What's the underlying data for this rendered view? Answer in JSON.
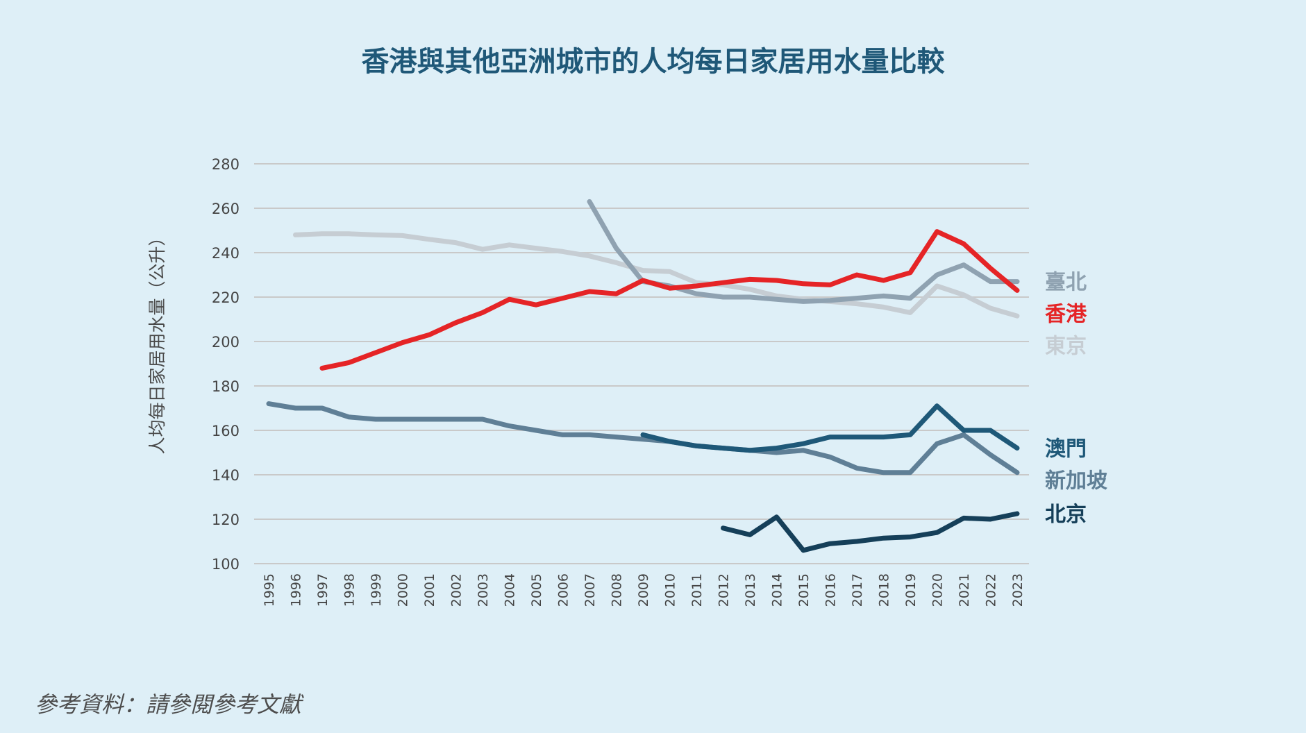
{
  "chart_data": {
    "type": "line",
    "title": "香港與其他亞洲城市的人均每日家居用水量比較",
    "ylabel": "人均每日家居用水量（公升）",
    "ylim": [
      100,
      280
    ],
    "yticks": [
      100,
      120,
      140,
      160,
      180,
      200,
      220,
      240,
      260,
      280
    ],
    "x": [
      "1995",
      "1996",
      "1997",
      "1998",
      "1999",
      "2000",
      "2001",
      "2002",
      "2003",
      "2004",
      "2005",
      "2006",
      "2007",
      "2008",
      "2009",
      "2010",
      "2011",
      "2012",
      "2013",
      "2014",
      "2015",
      "2016",
      "2017",
      "2018",
      "2019",
      "2020",
      "2021",
      "2022",
      "2023"
    ],
    "grid": true,
    "series": [
      {
        "name": "東京",
        "color": "#c6cdd3",
        "values": [
          null,
          248,
          248.5,
          248.5,
          248,
          247.7,
          246,
          244.5,
          241.5,
          243.5,
          242,
          240.5,
          238.5,
          235.5,
          232,
          231.5,
          226.5,
          225.5,
          223.5,
          220.5,
          219,
          218,
          217,
          215.5,
          213,
          225,
          221,
          215,
          211.5
        ]
      },
      {
        "name": "臺北",
        "color": "#8fa2b1",
        "values": [
          null,
          null,
          null,
          null,
          null,
          null,
          null,
          null,
          null,
          null,
          null,
          null,
          263,
          242,
          227,
          225,
          221.5,
          220,
          220,
          219,
          218,
          218.5,
          219.5,
          220.5,
          219.5,
          230,
          234.5,
          227,
          227
        ]
      },
      {
        "name": "香港",
        "color": "#e52426",
        "values": [
          null,
          null,
          188,
          190.5,
          195,
          199.5,
          203,
          208.5,
          213,
          219,
          216.5,
          219.5,
          222.5,
          221.5,
          227.5,
          224,
          225,
          226.5,
          228,
          227.5,
          226,
          225.5,
          230,
          227.5,
          231,
          249.5,
          244,
          233,
          223
        ]
      },
      {
        "name": "新加坡",
        "color": "#5f7f96",
        "values": [
          172,
          170,
          170,
          166,
          165,
          165,
          165,
          165,
          165,
          162,
          160,
          158,
          158,
          157,
          156,
          155,
          153,
          152,
          151,
          150,
          151,
          148,
          143,
          141,
          141,
          154,
          158,
          149,
          141
        ]
      },
      {
        "name": "澳門",
        "color": "#1e5878",
        "values": [
          null,
          null,
          null,
          null,
          null,
          null,
          null,
          null,
          null,
          null,
          null,
          null,
          null,
          null,
          158,
          155,
          153,
          152,
          151,
          152,
          154,
          157,
          157,
          157,
          158,
          171,
          160,
          160,
          152
        ]
      },
      {
        "name": "北京",
        "color": "#153f59",
        "values": [
          null,
          null,
          null,
          null,
          null,
          null,
          null,
          null,
          null,
          null,
          null,
          null,
          null,
          null,
          null,
          null,
          null,
          116,
          113,
          121,
          106,
          109,
          110,
          111.5,
          112,
          114,
          120.5,
          120,
          122.5
        ]
      }
    ],
    "legend": [
      {
        "label": "臺北",
        "color": "#8fa2b1",
        "value": 227
      },
      {
        "label": "香港",
        "color": "#e52426",
        "value": 223
      },
      {
        "label": "東京",
        "color": "#c6cdd3",
        "value": 211.5
      },
      {
        "label": "澳門",
        "color": "#1e5878",
        "value": 152
      },
      {
        "label": "新加坡",
        "color": "#5f7f96",
        "value": 141
      },
      {
        "label": "北京",
        "color": "#153f59",
        "value": 122.5
      }
    ]
  },
  "source_note": "參考資料：請參閱參考文獻"
}
